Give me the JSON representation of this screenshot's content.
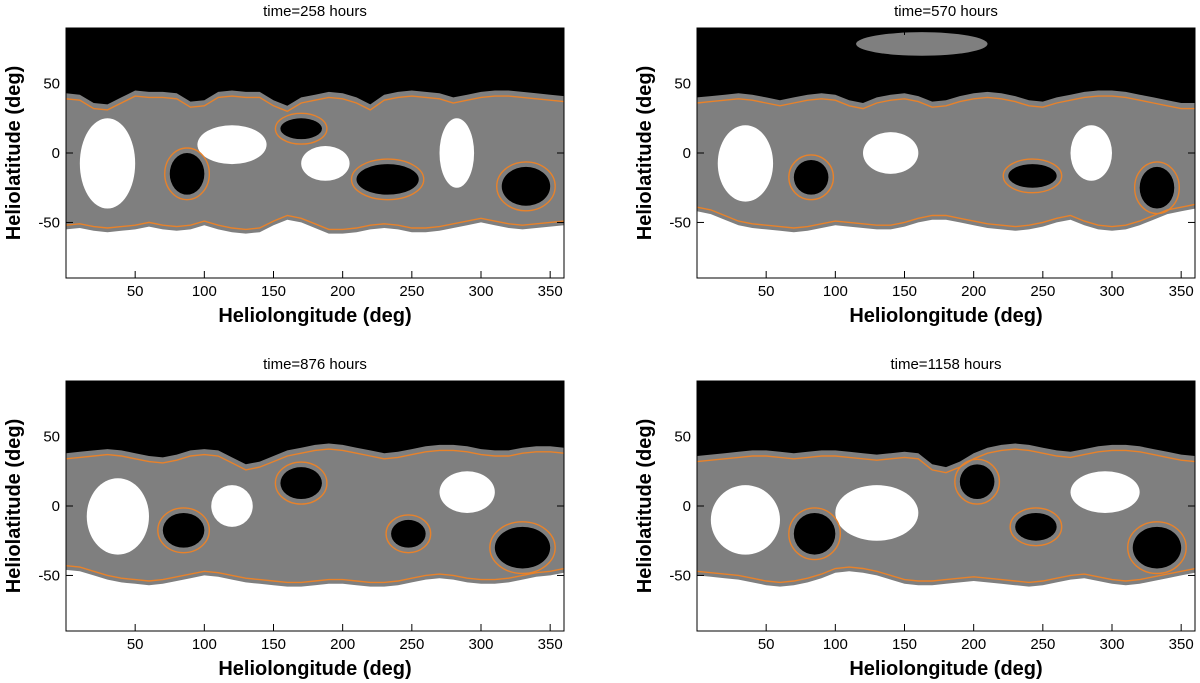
{
  "colors": {
    "black_region": "#000000",
    "gray_region": "#7f7f7f",
    "white_region": "#ffffff",
    "contour": "#e8822a",
    "axis": "#000000"
  },
  "chart_data": [
    {
      "type": "heatmap",
      "title": "time=258 hours",
      "xlabel": "Heliolongitude (deg)",
      "ylabel": "Heliolatitude (deg)",
      "xlim": [
        0,
        360
      ],
      "ylim": [
        -90,
        90
      ],
      "xticks": [
        50,
        100,
        150,
        200,
        250,
        300,
        350
      ],
      "yticks": [
        50,
        0,
        -50
      ],
      "ytick_labels": [
        "50",
        "0",
        "-50"
      ],
      "grid": false,
      "legend": "none",
      "black_above_lat": [
        43,
        42,
        36,
        35,
        40,
        45,
        44,
        44,
        43,
        37,
        38,
        44,
        45,
        44,
        44,
        38,
        34,
        40,
        42,
        44,
        43,
        40,
        35,
        42,
        44,
        45,
        44,
        43,
        40,
        42,
        44,
        45,
        45,
        44,
        43,
        42,
        41
      ],
      "white_below_lat": [
        -55,
        -54,
        -56,
        -57,
        -56,
        -55,
        -53,
        -55,
        -56,
        -55,
        -52,
        -55,
        -57,
        -58,
        -57,
        -52,
        -48,
        -50,
        -54,
        -58,
        -58,
        -57,
        -55,
        -54,
        -55,
        -57,
        -57,
        -56,
        -54,
        -52,
        -50,
        -52,
        -54,
        -55,
        -54,
        -53,
        -52
      ],
      "black_islands": [
        {
          "lon": [
            75,
            100
          ],
          "lat": [
            -30,
            0
          ]
        },
        {
          "lon": [
            155,
            185
          ],
          "lat": [
            10,
            25
          ]
        },
        {
          "lon": [
            210,
            255
          ],
          "lat": [
            -30,
            -8
          ]
        },
        {
          "lon": [
            315,
            350
          ],
          "lat": [
            -38,
            -10
          ]
        }
      ],
      "white_islands": [
        {
          "lon": [
            10,
            50
          ],
          "lat": [
            -40,
            25
          ]
        },
        {
          "lon": [
            95,
            145
          ],
          "lat": [
            -8,
            20
          ]
        },
        {
          "lon": [
            170,
            205
          ],
          "lat": [
            -20,
            5
          ]
        },
        {
          "lon": [
            270,
            295
          ],
          "lat": [
            -25,
            25
          ]
        }
      ]
    },
    {
      "type": "heatmap",
      "title": "time=570 hours",
      "xlabel": "Heliolongitude (deg)",
      "ylabel": "Heliolatitude (deg)",
      "xlim": [
        0,
        360
      ],
      "ylim": [
        -90,
        90
      ],
      "xticks": [
        50,
        100,
        150,
        200,
        250,
        300,
        350
      ],
      "yticks": [
        50,
        0,
        -50
      ],
      "ytick_labels": [
        "50",
        "0",
        "-50"
      ],
      "grid": false,
      "legend": "none",
      "black_above_lat": [
        40,
        41,
        42,
        43,
        42,
        40,
        38,
        40,
        42,
        43,
        42,
        38,
        36,
        40,
        42,
        43,
        41,
        37,
        38,
        41,
        43,
        44,
        43,
        41,
        38,
        37,
        40,
        42,
        44,
        45,
        45,
        44,
        42,
        40,
        38,
        36,
        36
      ],
      "white_below_lat": [
        -42,
        -44,
        -48,
        -52,
        -54,
        -55,
        -56,
        -57,
        -56,
        -54,
        -52,
        -53,
        -54,
        -55,
        -55,
        -53,
        -50,
        -48,
        -48,
        -50,
        -52,
        -54,
        -55,
        -56,
        -55,
        -53,
        -50,
        -48,
        -52,
        -55,
        -56,
        -55,
        -52,
        -48,
        -44,
        -42,
        -40
      ],
      "black_islands": [
        {
          "lon": [
            70,
            95
          ],
          "lat": [
            -30,
            -5
          ]
        },
        {
          "lon": [
            225,
            260
          ],
          "lat": [
            -25,
            -8
          ]
        },
        {
          "lon": [
            320,
            345
          ],
          "lat": [
            -40,
            -10
          ]
        }
      ],
      "white_islands": [
        {
          "lon": [
            15,
            55
          ],
          "lat": [
            -35,
            20
          ]
        },
        {
          "lon": [
            120,
            160
          ],
          "lat": [
            -15,
            15
          ]
        },
        {
          "lon": [
            270,
            300
          ],
          "lat": [
            -20,
            20
          ]
        }
      ],
      "gray_cap": {
        "lon": [
          115,
          210
        ],
        "lat": [
          70,
          87
        ]
      }
    },
    {
      "type": "heatmap",
      "title": "time=876 hours",
      "xlabel": "Heliolongitude (deg)",
      "ylabel": "Heliolatitude (deg)",
      "xlim": [
        0,
        360
      ],
      "ylim": [
        -90,
        90
      ],
      "xticks": [
        50,
        100,
        150,
        200,
        250,
        300,
        350
      ],
      "yticks": [
        50,
        0,
        -50
      ],
      "ytick_labels": [
        "50",
        "0",
        "-50"
      ],
      "grid": false,
      "legend": "none",
      "black_above_lat": [
        38,
        39,
        40,
        41,
        40,
        38,
        36,
        35,
        37,
        40,
        41,
        40,
        35,
        30,
        32,
        36,
        40,
        42,
        44,
        45,
        44,
        42,
        40,
        38,
        39,
        41,
        43,
        44,
        44,
        43,
        41,
        40,
        40,
        42,
        43,
        43,
        42
      ],
      "white_below_lat": [
        -46,
        -47,
        -50,
        -53,
        -55,
        -56,
        -57,
        -56,
        -54,
        -52,
        -50,
        -51,
        -53,
        -55,
        -56,
        -57,
        -58,
        -58,
        -57,
        -56,
        -56,
        -57,
        -58,
        -58,
        -57,
        -55,
        -53,
        -52,
        -53,
        -55,
        -56,
        -56,
        -55,
        -53,
        -51,
        -50,
        -48
      ],
      "black_islands": [
        {
          "lon": [
            70,
            100
          ],
          "lat": [
            -30,
            -5
          ]
        },
        {
          "lon": [
            155,
            185
          ],
          "lat": [
            5,
            28
          ]
        },
        {
          "lon": [
            235,
            260
          ],
          "lat": [
            -30,
            -10
          ]
        },
        {
          "lon": [
            310,
            350
          ],
          "lat": [
            -45,
            -15
          ]
        }
      ],
      "white_islands": [
        {
          "lon": [
            15,
            60
          ],
          "lat": [
            -35,
            20
          ]
        },
        {
          "lon": [
            105,
            135
          ],
          "lat": [
            -15,
            15
          ]
        },
        {
          "lon": [
            270,
            310
          ],
          "lat": [
            -5,
            25
          ]
        }
      ]
    },
    {
      "type": "heatmap",
      "title": "time=1158 hours",
      "xlabel": "Heliolongitude (deg)",
      "ylabel": "Heliolatitude (deg)",
      "xlim": [
        0,
        360
      ],
      "ylim": [
        -90,
        90
      ],
      "xticks": [
        50,
        100,
        150,
        200,
        250,
        300,
        350
      ],
      "yticks": [
        50,
        0,
        -50
      ],
      "ytick_labels": [
        "50",
        "0",
        "-50"
      ],
      "grid": false,
      "legend": "none",
      "black_above_lat": [
        36,
        37,
        38,
        39,
        40,
        40,
        39,
        38,
        39,
        40,
        40,
        39,
        38,
        37,
        38,
        39,
        38,
        30,
        28,
        32,
        38,
        42,
        44,
        45,
        44,
        42,
        40,
        39,
        41,
        43,
        44,
        44,
        43,
        41,
        39,
        37,
        36
      ],
      "white_below_lat": [
        -50,
        -51,
        -52,
        -53,
        -55,
        -57,
        -58,
        -57,
        -55,
        -52,
        -48,
        -47,
        -48,
        -50,
        -53,
        -56,
        -57,
        -57,
        -56,
        -55,
        -54,
        -55,
        -56,
        -57,
        -58,
        -57,
        -55,
        -53,
        -52,
        -54,
        -56,
        -57,
        -56,
        -54,
        -52,
        -50,
        -48
      ],
      "black_islands": [
        {
          "lon": [
            70,
            100
          ],
          "lat": [
            -35,
            -5
          ]
        },
        {
          "lon": [
            190,
            215
          ],
          "lat": [
            5,
            30
          ]
        },
        {
          "lon": [
            230,
            260
          ],
          "lat": [
            -25,
            -5
          ]
        },
        {
          "lon": [
            315,
            350
          ],
          "lat": [
            -45,
            -15
          ]
        }
      ],
      "white_islands": [
        {
          "lon": [
            10,
            60
          ],
          "lat": [
            -35,
            15
          ]
        },
        {
          "lon": [
            100,
            160
          ],
          "lat": [
            -25,
            15
          ]
        },
        {
          "lon": [
            270,
            320
          ],
          "lat": [
            -5,
            25
          ]
        }
      ]
    }
  ]
}
